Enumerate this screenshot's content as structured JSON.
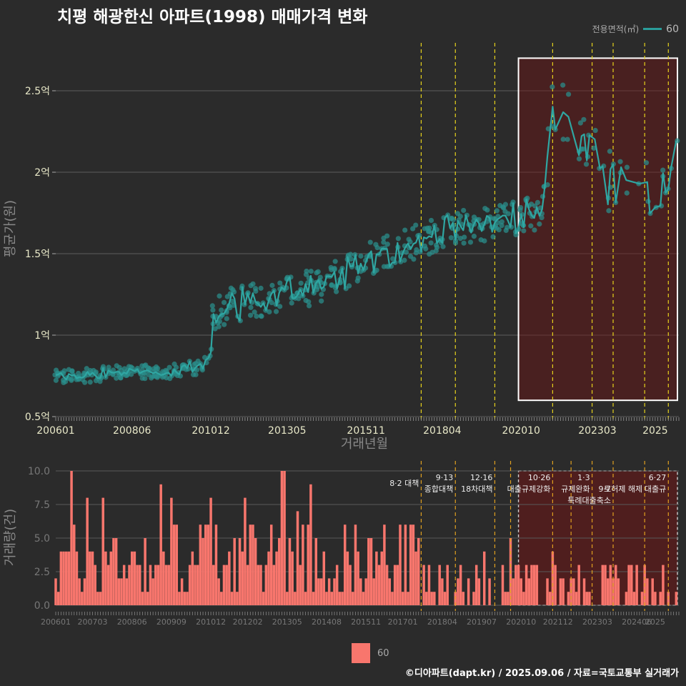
{
  "title": "치평 해광한신 아파트(1998) 매매가격 변화",
  "legend_top": {
    "title": "전용면적(㎡)",
    "label": "60",
    "color": "#2a9d9a"
  },
  "legend_bottom": {
    "label": "60",
    "color": "#f8766d"
  },
  "caption": "©디아파트(dapt.kr) / 2025.09.06 / 자료=국토교통부 실거래가",
  "chart_data": [
    {
      "type": "line",
      "name": "price",
      "xlabel": "거래년월",
      "ylabel": "평균가(원)",
      "ylim": [
        0.5,
        2.75
      ],
      "yticks": [
        {
          "v": 0.5,
          "label": "0.5억"
        },
        {
          "v": 1.0,
          "label": "1억"
        },
        {
          "v": 1.5,
          "label": "1.5억"
        },
        {
          "v": 2.0,
          "label": "2억"
        },
        {
          "v": 2.5,
          "label": "2.5억"
        }
      ],
      "xticks": [
        "200601",
        "200806",
        "201012",
        "201305",
        "201511",
        "201804",
        "202010",
        "202303",
        "2025"
      ],
      "grid": true,
      "policy_lines": [
        "2017.08",
        "2018.09",
        "2019.12",
        "2021.10",
        "2023.01",
        "2023.09",
        "2024.09",
        "2025.06"
      ],
      "highlight_range": [
        "2020.09",
        "2025.12"
      ],
      "highlight_y": [
        0.6,
        2.7
      ],
      "series_color": "#2a9d9a",
      "anchors": [
        [
          "2006.01",
          0.74
        ],
        [
          "2007.06",
          0.76
        ],
        [
          "2008.06",
          0.78
        ],
        [
          "2009.06",
          0.77
        ],
        [
          "2010.06",
          0.8
        ],
        [
          "2010.11",
          0.84
        ],
        [
          "2011.01",
          1.12
        ],
        [
          "2011.06",
          1.18
        ],
        [
          "2012.06",
          1.22
        ],
        [
          "2013.06",
          1.27
        ],
        [
          "2014.06",
          1.3
        ],
        [
          "2015.06",
          1.42
        ],
        [
          "2016.06",
          1.52
        ],
        [
          "2017.06",
          1.57
        ],
        [
          "2018.06",
          1.65
        ],
        [
          "2019.06",
          1.68
        ],
        [
          "2020.06",
          1.72
        ],
        [
          "2021.01",
          1.74
        ],
        [
          "2021.06",
          1.75
        ],
        [
          "2021.10",
          2.45
        ],
        [
          "2022.06",
          2.35
        ],
        [
          "2023.06",
          1.95
        ],
        [
          "2024.06",
          1.9
        ],
        [
          "2025.09",
          2.05
        ]
      ]
    },
    {
      "type": "bar",
      "name": "volume",
      "xlabel": "",
      "ylabel": "거래량(건)",
      "ylim": [
        0,
        10
      ],
      "yticks": [
        {
          "v": 0,
          "label": "0.0"
        },
        {
          "v": 2.5,
          "label": "2.5"
        },
        {
          "v": 5,
          "label": "5.0"
        },
        {
          "v": 7.5,
          "label": "7.5"
        },
        {
          "v": 10,
          "label": "10.0"
        }
      ],
      "xticks": [
        "200601",
        "200703",
        "200806",
        "200909",
        "201012",
        "201202",
        "201305",
        "201408",
        "201511",
        "201701",
        "201804",
        "201907",
        "202010",
        "202112",
        "202303",
        "202406",
        "2025"
      ],
      "bar_color": "#f8766d",
      "policy_lines": [
        "2017.08",
        "2018.09",
        "2019.12",
        "2020.06",
        "2021.10",
        "2022.05",
        "2023.01",
        "2023.09",
        "2024.09",
        "2025.06"
      ],
      "highlight_range": [
        "2020.09",
        "2025.12"
      ],
      "annotations": [
        {
          "x": "2017.08",
          "lines": [
            "8·2 대책"
          ]
        },
        {
          "x": "2018.09",
          "lines": [
            "9·13",
            "종합대책"
          ]
        },
        {
          "x": "2019.12",
          "lines": [
            "12·16",
            "18차대책"
          ]
        },
        {
          "x": "2021.10",
          "lines": [
            "10·26",
            "대출규제강화"
          ]
        },
        {
          "x": "2023.01",
          "lines": [
            "1·3",
            "규제완화"
          ]
        },
        {
          "x": "2023.09",
          "lines": [
            "9·7",
            "특례대출축소"
          ]
        },
        {
          "x": "2024.09",
          "lines": [
            "",
            "토허제 해제"
          ]
        },
        {
          "x": "2025.06",
          "lines": [
            "6·27",
            "대출규"
          ]
        }
      ]
    }
  ]
}
